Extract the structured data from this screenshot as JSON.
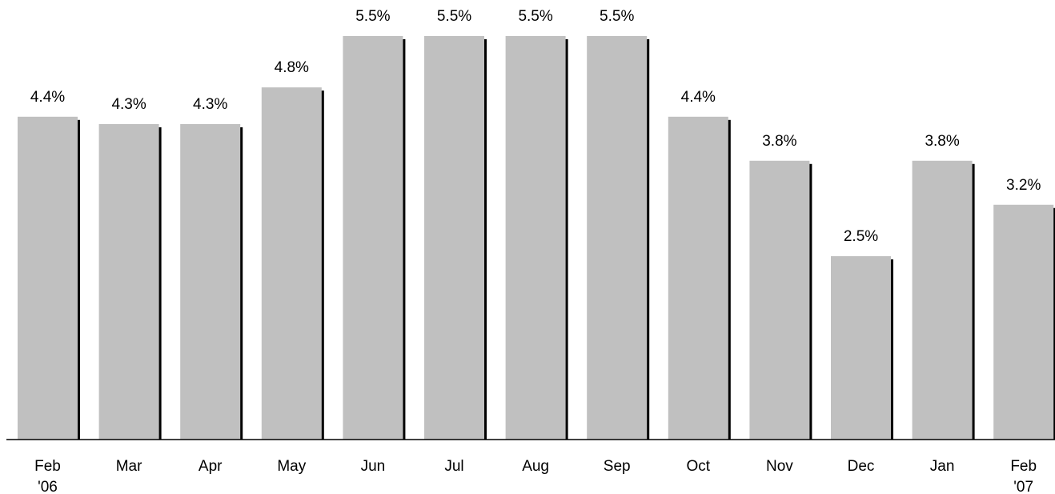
{
  "chart_data": {
    "type": "bar",
    "categories": [
      "Feb '06",
      "Mar",
      "Apr",
      "May",
      "Jun",
      "Jul",
      "Aug",
      "Sep",
      "Oct",
      "Nov",
      "Dec",
      "Jan",
      "Feb '07"
    ],
    "values": [
      4.4,
      4.3,
      4.3,
      4.8,
      5.5,
      5.5,
      5.5,
      5.5,
      4.4,
      3.8,
      2.5,
      3.8,
      3.2
    ],
    "value_labels": [
      "4.4%",
      "4.3%",
      "4.3%",
      "4.8%",
      "5.5%",
      "5.5%",
      "5.5%",
      "5.5%",
      "4.4%",
      "3.8%",
      "2.5%",
      "3.8%",
      "3.2%"
    ],
    "color": "#c0c0c0",
    "ylim": [
      0,
      5.5
    ]
  }
}
